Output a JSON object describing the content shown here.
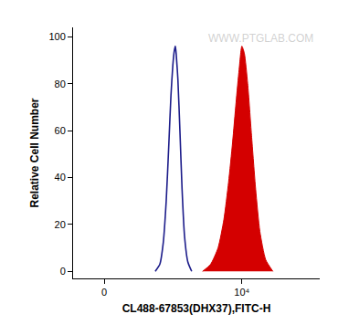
{
  "chart_data": {
    "type": "line",
    "x_label": "CL488-67853(DHX37),FITC-H",
    "y_label": "Relative Cell Number",
    "annotations": [
      "WWW.PTGLAB.COM"
    ],
    "series": [
      {
        "type": "line",
        "color": "#1c1c8a",
        "x": [
          350,
          420,
          480,
          540,
          600,
          650,
          700,
          740,
          771,
          800,
          850,
          920,
          1000,
          1100,
          1250,
          1450
        ],
        "values": [
          0,
          3,
          12,
          30,
          55,
          75,
          88,
          94,
          96,
          92,
          82,
          60,
          35,
          15,
          4,
          0
        ]
      },
      {
        "type": "area",
        "color": "#d40000",
        "x": [
          2200,
          3000,
          4000,
          5000,
          6000,
          7000,
          8000,
          9000,
          10000,
          11000,
          12500,
          14500,
          17000,
          20000,
          25000,
          33000
        ],
        "values": [
          0,
          3,
          10,
          22,
          38,
          55,
          72,
          86,
          96,
          93,
          80,
          58,
          35,
          17,
          5,
          0
        ]
      }
    ],
    "xlim": [
      -150,
      200000
    ],
    "xticks": [
      0,
      {
        "value": 10000,
        "label": "10⁴"
      }
    ],
    "ylim": [
      -3,
      104
    ],
    "yticks": [
      0,
      20,
      40,
      60,
      80,
      100
    ],
    "grid": false
  }
}
